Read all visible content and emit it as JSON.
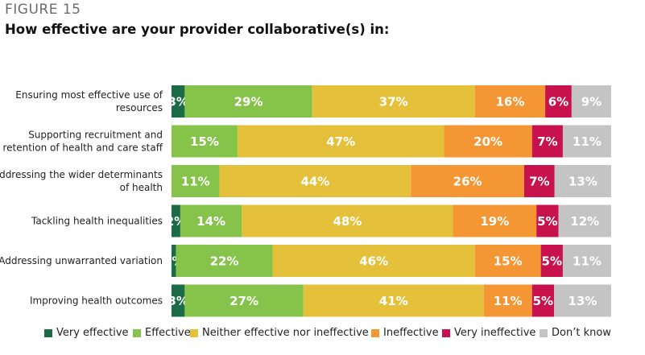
{
  "header": {
    "figure_label": "FIGURE 15",
    "title": "How effective are your provider collaborative(s) in:"
  },
  "colors": {
    "very_effective": "#1a6b46",
    "effective": "#86c34a",
    "neither": "#e5c13b",
    "ineffective": "#f59635",
    "very_ineffective": "#c8124e",
    "dont_know": "#c4c4c4"
  },
  "chart_data": {
    "type": "bar",
    "orientation": "horizontal",
    "stacked": "percent",
    "title": "How effective are your provider collaborative(s) in:",
    "categories": [
      [
        "Ensuring most effective use of",
        "resources"
      ],
      [
        "Supporting recruitment and",
        "retention of health and care staff"
      ],
      [
        "Addressing the wider determinants",
        "of health"
      ],
      [
        "Tackling health inequalities"
      ],
      [
        "Addressing unwarranted variation"
      ],
      [
        "Improving health outcomes"
      ]
    ],
    "series": [
      {
        "name": "Very effective",
        "color_key": "very_effective",
        "values": [
          3,
          0,
          0,
          2,
          1,
          3
        ]
      },
      {
        "name": "Effective",
        "color_key": "effective",
        "values": [
          29,
          15,
          11,
          14,
          22,
          27
        ]
      },
      {
        "name": "Neither effective nor ineffective",
        "color_key": "neither",
        "values": [
          37,
          47,
          44,
          48,
          46,
          41
        ]
      },
      {
        "name": "Ineffective",
        "color_key": "ineffective",
        "values": [
          16,
          20,
          26,
          19,
          15,
          11
        ]
      },
      {
        "name": "Very ineffective",
        "color_key": "very_ineffective",
        "values": [
          6,
          7,
          7,
          5,
          5,
          5
        ]
      },
      {
        "name": "Don’t know",
        "color_key": "dont_know",
        "values": [
          9,
          11,
          13,
          12,
          11,
          13
        ]
      }
    ],
    "data_label_suffix": "%",
    "grid": false,
    "legend_position": "bottom"
  }
}
